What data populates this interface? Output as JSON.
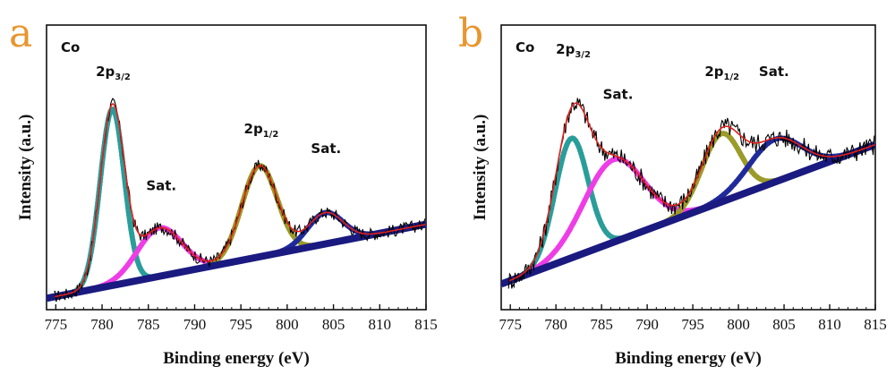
{
  "chart_data": [
    {
      "type": "line",
      "panel_letter": "a",
      "element": "Co",
      "xlabel": "Binding energy (eV)",
      "ylabel": "Intensity (a.u.)",
      "xlim": [
        774,
        815
      ],
      "ylim": [
        0,
        1
      ],
      "x_ticks": [
        775,
        780,
        785,
        790,
        795,
        800,
        805,
        810,
        815
      ],
      "baseline": {
        "start": 0.04,
        "end": 0.3,
        "color": "#1a1a80"
      },
      "components": [
        {
          "label": "2p",
          "sub": "3/2",
          "center": 781.1,
          "width": 1.3,
          "height": 0.62,
          "color": "#2a9d9a",
          "label_pos": [
            781.2,
            0.82
          ]
        },
        {
          "label": "Sat.",
          "sub": "",
          "center": 786.2,
          "width": 2.4,
          "height": 0.17,
          "color": "#ee3de6",
          "label_pos": [
            786.4,
            0.42
          ]
        },
        {
          "label": "2p",
          "sub": "1/2",
          "center": 797.0,
          "width": 1.9,
          "height": 0.32,
          "color": "#9b9b2a",
          "label_pos": [
            797.2,
            0.62
          ]
        },
        {
          "label": "Sat.",
          "sub": "",
          "center": 804.1,
          "width": 1.9,
          "height": 0.11,
          "color": "#1f2a9b",
          "label_pos": [
            804.2,
            0.55
          ]
        }
      ],
      "fit_color": "#e0201a",
      "noise_amplitude": 0.022
    },
    {
      "type": "line",
      "panel_letter": "b",
      "element": "Co",
      "xlabel": "Binding energy (eV)",
      "ylabel": "Intensity (a.u.)",
      "xlim": [
        774,
        815
      ],
      "ylim": [
        0,
        1
      ],
      "x_ticks": [
        775,
        780,
        785,
        790,
        795,
        800,
        805,
        810,
        815
      ],
      "baseline": {
        "start": 0.09,
        "end": 0.58,
        "color": "#1a1a80"
      },
      "components": [
        {
          "label": "2p",
          "sub": "3/2",
          "center": 781.7,
          "width": 1.8,
          "height": 0.42,
          "color": "#2a9d9a",
          "label_pos": [
            781.9,
            0.9
          ]
        },
        {
          "label": "Sat.",
          "sub": "",
          "center": 786.3,
          "width": 3.3,
          "height": 0.29,
          "color": "#ee3de6",
          "label_pos": [
            786.8,
            0.74
          ]
        },
        {
          "label": "2p",
          "sub": "1/2",
          "center": 798.1,
          "width": 2.1,
          "height": 0.24,
          "color": "#9b9b2a",
          "label_pos": [
            798.2,
            0.82
          ]
        },
        {
          "label": "Sat.",
          "sub": "",
          "center": 804.0,
          "width": 2.9,
          "height": 0.15,
          "color": "#1f2a9b",
          "label_pos": [
            803.9,
            0.82
          ]
        }
      ],
      "fit_color": "#e0201a",
      "noise_amplitude": 0.035
    }
  ]
}
